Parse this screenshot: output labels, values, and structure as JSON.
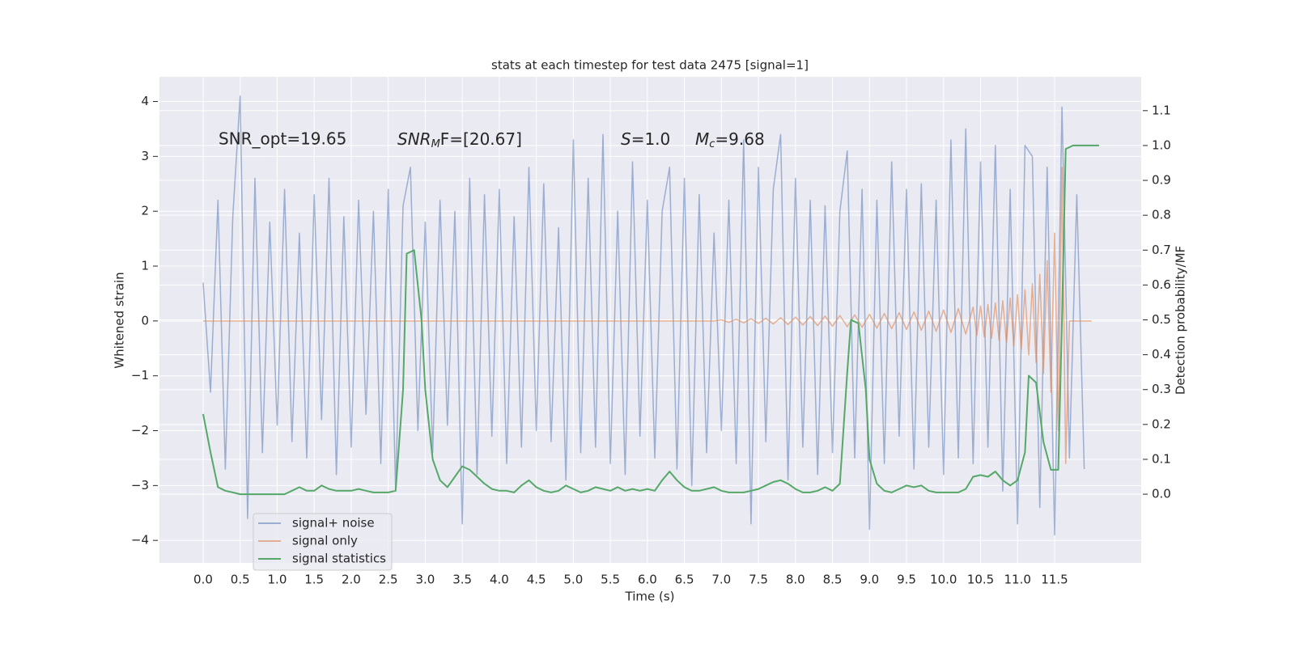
{
  "chart_data": {
    "type": "line",
    "title": "stats at each timestep for test data 2475 [signal=1]",
    "xlabel": "Time (s)",
    "ylabel": "Whitened strain",
    "y2label": "Detection probability/MF",
    "annotations": [
      {
        "text": "SNR_opt=19.65"
      },
      {
        "parts": [
          "SNR",
          "M",
          "F=[20.67]"
        ]
      },
      {
        "parts": [
          "S",
          "=1.0"
        ]
      },
      {
        "parts": [
          "M",
          "c",
          "=9.68"
        ]
      }
    ],
    "grid": true,
    "legend": "lower left",
    "xlim": [
      -0.59,
      12.67
    ],
    "ylim": [
      -4.41,
      4.45
    ],
    "y2lim": [
      -0.197,
      1.197
    ],
    "xticks": [
      {
        "value": 0,
        "label": "0.0"
      },
      0.5,
      {
        "value": 1,
        "label": "1.0"
      },
      1.5,
      {
        "value": 2,
        "label": "2.0"
      },
      2.5,
      {
        "value": 3,
        "label": "3.0"
      },
      3.5,
      {
        "value": 4,
        "label": "4.0"
      },
      4.5,
      {
        "value": 5,
        "label": "5.0"
      },
      5.5,
      {
        "value": 6,
        "label": "6.0"
      },
      6.5,
      {
        "value": 7,
        "label": "7.0"
      },
      7.5,
      {
        "value": 8,
        "label": "8.0"
      },
      8.5,
      {
        "value": 9,
        "label": "9.0"
      },
      9.5,
      {
        "value": 10,
        "label": "10.0"
      },
      10.5,
      {
        "value": 11,
        "label": "11.0"
      },
      11.5
    ],
    "yticks": [
      {
        "value": -4,
        "label": "−4"
      },
      {
        "value": -3,
        "label": "−3"
      },
      {
        "value": -2,
        "label": "−2"
      },
      {
        "value": -1,
        "label": "−1"
      },
      0,
      1,
      2,
      3,
      4
    ],
    "y2ticks": [
      {
        "value": 0,
        "label": "0.0"
      },
      0.1,
      0.2,
      0.3,
      0.4,
      0.5,
      0.6,
      0.7,
      0.8,
      0.9,
      {
        "value": 1,
        "label": "1.0"
      },
      1.1
    ],
    "series": [
      {
        "name": "signal+ noise",
        "color": "#4c72b0",
        "opacity": 0.5,
        "x": [
          0,
          0.1,
          0.2,
          0.3,
          0.4,
          0.5,
          0.6,
          0.7,
          0.8,
          0.9,
          1,
          1.1,
          1.2,
          1.3,
          1.4,
          1.5,
          1.6,
          1.7,
          1.8,
          1.9,
          2,
          2.1,
          2.2,
          2.3,
          2.4,
          2.5,
          2.6,
          2.7,
          2.8,
          2.9,
          3,
          3.1,
          3.2,
          3.3,
          3.4,
          3.5,
          3.6,
          3.7,
          3.8,
          3.9,
          4,
          4.1,
          4.2,
          4.3,
          4.4,
          4.5,
          4.6,
          4.7,
          4.8,
          4.9,
          5,
          5.1,
          5.2,
          5.3,
          5.4,
          5.5,
          5.6,
          5.7,
          5.8,
          5.9,
          6,
          6.1,
          6.2,
          6.3,
          6.4,
          6.5,
          6.6,
          6.7,
          6.8,
          6.9,
          7,
          7.1,
          7.2,
          7.3,
          7.4,
          7.5,
          7.6,
          7.7,
          7.8,
          7.9,
          8,
          8.1,
          8.2,
          8.3,
          8.4,
          8.5,
          8.6,
          8.7,
          8.8,
          8.9,
          9,
          9.1,
          9.2,
          9.3,
          9.4,
          9.5,
          9.6,
          9.7,
          9.8,
          9.9,
          10,
          10.1,
          10.2,
          10.3,
          10.4,
          10.5,
          10.6,
          10.7,
          10.8,
          10.9,
          11,
          11.1,
          11.2,
          11.3,
          11.4,
          11.5,
          11.6,
          11.7,
          11.8,
          11.9
        ],
        "values": [
          0.7,
          -1.3,
          2.2,
          -2.7,
          1.9,
          4.1,
          -3.6,
          2.6,
          -2.4,
          1.8,
          -1.9,
          2.4,
          -2.2,
          1.6,
          -2.5,
          2.3,
          -1.8,
          2.6,
          -2.8,
          1.9,
          -2.3,
          2.2,
          -1.7,
          2.0,
          -2.6,
          2.4,
          -3.1,
          2.1,
          2.8,
          -2.0,
          1.8,
          -2.4,
          2.2,
          -1.9,
          2.0,
          -3.7,
          2.6,
          -2.8,
          2.3,
          -2.1,
          2.4,
          -2.6,
          1.9,
          -2.3,
          2.8,
          -2.0,
          2.5,
          -2.2,
          1.7,
          -2.9,
          3.3,
          -2.4,
          2.6,
          -2.3,
          3.4,
          -2.6,
          2.0,
          -2.8,
          2.9,
          -2.1,
          2.2,
          -2.5,
          2.0,
          2.8,
          -2.7,
          2.6,
          -3.0,
          2.3,
          -2.4,
          1.6,
          -2.0,
          2.2,
          -2.6,
          3.3,
          -3.7,
          2.8,
          -2.2,
          2.4,
          3.4,
          -2.9,
          2.6,
          -2.3,
          2.2,
          -2.8,
          2.1,
          -2.4,
          2.0,
          3.1,
          -2.5,
          2.4,
          -3.8,
          2.2,
          -2.6,
          2.9,
          -2.1,
          2.4,
          -2.7,
          2.5,
          -2.3,
          2.2,
          -2.8,
          3.3,
          -2.5,
          3.5,
          -2.6,
          2.9,
          -2.3,
          3.2,
          -3.1,
          2.4,
          -3.7,
          3.2,
          3.0,
          -3.4,
          2.8,
          -3.9,
          3.9,
          -2.5,
          2.3,
          -2.7
        ]
      },
      {
        "name": "signal only",
        "color": "#dd8452",
        "opacity": 0.6,
        "x": [
          0,
          6.9,
          7,
          7.1,
          7.2,
          7.3,
          7.4,
          7.5,
          7.6,
          7.7,
          7.8,
          7.9,
          8,
          8.1,
          8.2,
          8.3,
          8.4,
          8.5,
          8.6,
          8.7,
          8.8,
          8.9,
          9,
          9.1,
          9.2,
          9.3,
          9.4,
          9.5,
          9.6,
          9.7,
          9.8,
          9.9,
          10,
          10.1,
          10.2,
          10.3,
          10.4,
          10.45,
          10.5,
          10.55,
          10.6,
          10.65,
          10.7,
          10.75,
          10.8,
          10.85,
          10.9,
          10.95,
          11,
          11.05,
          11.1,
          11.15,
          11.2,
          11.25,
          11.3,
          11.35,
          11.4,
          11.45,
          11.5,
          11.55,
          11.6,
          11.65,
          11.7,
          12
        ],
        "values": [
          0,
          0,
          0.02,
          -0.025,
          0.03,
          -0.035,
          0.04,
          -0.045,
          0.05,
          -0.055,
          0.06,
          -0.065,
          0.07,
          -0.075,
          0.08,
          -0.085,
          0.09,
          -0.095,
          0.1,
          -0.105,
          0.11,
          -0.115,
          0.12,
          -0.13,
          0.135,
          -0.14,
          0.15,
          -0.155,
          0.165,
          -0.17,
          0.18,
          -0.19,
          0.2,
          -0.21,
          0.225,
          -0.24,
          0.255,
          -0.265,
          0.275,
          -0.29,
          0.3,
          -0.315,
          0.33,
          -0.35,
          0.37,
          -0.39,
          0.42,
          -0.45,
          0.48,
          -0.52,
          0.57,
          -0.62,
          0.68,
          -0.76,
          0.85,
          -0.96,
          1.1,
          -1.3,
          1.6,
          -2.0,
          2.8,
          -2.6,
          0,
          0
        ]
      },
      {
        "name": "signal statistics",
        "color": "#55a868",
        "opacity": 1,
        "axis": "y2",
        "x": [
          0,
          0.1,
          0.2,
          0.3,
          0.4,
          0.5,
          0.6,
          0.7,
          0.8,
          0.9,
          1,
          1.1,
          1.2,
          1.3,
          1.4,
          1.5,
          1.6,
          1.7,
          1.8,
          1.9,
          2,
          2.1,
          2.2,
          2.3,
          2.4,
          2.5,
          2.6,
          2.7,
          2.75,
          2.85,
          2.95,
          3,
          3.1,
          3.2,
          3.3,
          3.4,
          3.5,
          3.6,
          3.7,
          3.8,
          3.9,
          4,
          4.1,
          4.2,
          4.3,
          4.4,
          4.5,
          4.6,
          4.7,
          4.8,
          4.9,
          5,
          5.1,
          5.2,
          5.3,
          5.4,
          5.5,
          5.6,
          5.7,
          5.8,
          5.9,
          6,
          6.1,
          6.2,
          6.3,
          6.4,
          6.5,
          6.6,
          6.7,
          6.8,
          6.9,
          7,
          7.1,
          7.2,
          7.3,
          7.4,
          7.5,
          7.6,
          7.7,
          7.8,
          7.9,
          8,
          8.1,
          8.2,
          8.3,
          8.4,
          8.5,
          8.6,
          8.7,
          8.75,
          8.85,
          8.95,
          9,
          9.1,
          9.2,
          9.3,
          9.4,
          9.5,
          9.6,
          9.7,
          9.8,
          9.9,
          10,
          10.1,
          10.2,
          10.3,
          10.4,
          10.5,
          10.6,
          10.7,
          10.8,
          10.9,
          11,
          11.1,
          11.15,
          11.25,
          11.35,
          11.45,
          11.55,
          11.6,
          11.65,
          11.75,
          12.1
        ],
        "values": [
          0.23,
          0.12,
          0.02,
          0.01,
          0.005,
          0,
          0,
          0,
          0,
          0,
          0,
          0,
          0.01,
          0.02,
          0.01,
          0.01,
          0.025,
          0.015,
          0.01,
          0.01,
          0.01,
          0.015,
          0.01,
          0.005,
          0.005,
          0.005,
          0.01,
          0.3,
          0.69,
          0.7,
          0.5,
          0.3,
          0.1,
          0.04,
          0.02,
          0.05,
          0.08,
          0.07,
          0.05,
          0.03,
          0.015,
          0.01,
          0.01,
          0.005,
          0.025,
          0.04,
          0.02,
          0.01,
          0.005,
          0.01,
          0.025,
          0.015,
          0.005,
          0.01,
          0.02,
          0.015,
          0.01,
          0.02,
          0.01,
          0.015,
          0.01,
          0.015,
          0.01,
          0.04,
          0.065,
          0.04,
          0.02,
          0.01,
          0.01,
          0.015,
          0.02,
          0.01,
          0.005,
          0.005,
          0.005,
          0.01,
          0.015,
          0.025,
          0.035,
          0.04,
          0.03,
          0.015,
          0.005,
          0.005,
          0.01,
          0.02,
          0.01,
          0.03,
          0.35,
          0.5,
          0.49,
          0.3,
          0.1,
          0.03,
          0.01,
          0.005,
          0.015,
          0.025,
          0.02,
          0.025,
          0.01,
          0.005,
          0.005,
          0.005,
          0.005,
          0.015,
          0.05,
          0.055,
          0.05,
          0.065,
          0.04,
          0.025,
          0.04,
          0.12,
          0.34,
          0.32,
          0.15,
          0.07,
          0.07,
          0.5,
          0.99,
          1.0,
          1.0
        ]
      }
    ]
  }
}
